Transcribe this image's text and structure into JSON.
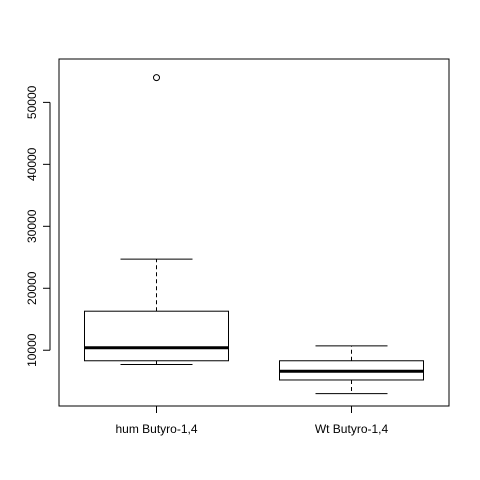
{
  "chart_data": {
    "type": "boxplot",
    "title": "",
    "xlabel": "",
    "ylabel": "",
    "ylim": [
      1000,
      57000
    ],
    "yticks": [
      10000,
      20000,
      30000,
      40000,
      50000
    ],
    "ytick_labels": [
      "10000",
      "20000",
      "30000",
      "40000",
      "50000"
    ],
    "categories": [
      "hum Butyro-1,4",
      "Wt Butyro-1,4"
    ],
    "boxes": [
      {
        "category": "hum Butyro-1,4",
        "whisker_low": 7700,
        "q1": 8300,
        "median": 10400,
        "q3": 16300,
        "whisker_high": 24700,
        "outliers": [
          54000
        ]
      },
      {
        "category": "Wt Butyro-1,4",
        "whisker_low": 3000,
        "q1": 5200,
        "median": 6600,
        "q3": 8300,
        "whisker_high": 10700,
        "outliers": []
      }
    ],
    "grid": false,
    "legend": "none"
  }
}
